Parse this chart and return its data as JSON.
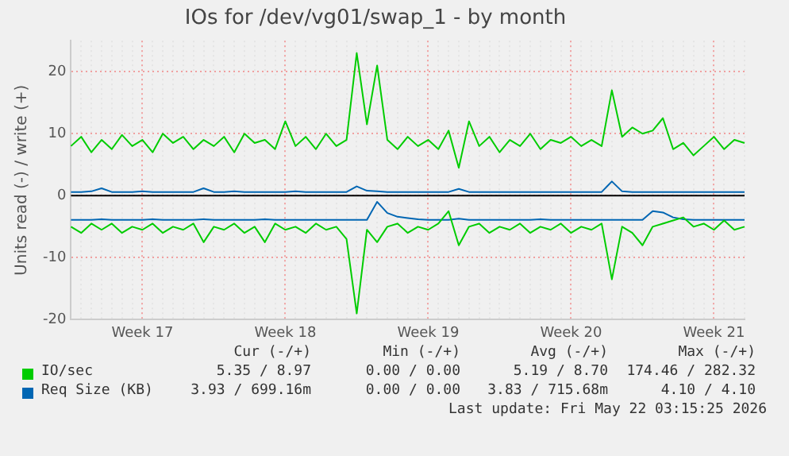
{
  "chart_data": {
    "type": "line",
    "title": "IOs for /dev/vg01/swap_1 - by month",
    "ylabel": "Units read (-) / write (+)",
    "categories": [
      null,
      null,
      null,
      null,
      null,
      null,
      null,
      "Week 17",
      null,
      null,
      null,
      null,
      null,
      null,
      null,
      null,
      null,
      null,
      null,
      null,
      null,
      "Week 18",
      null,
      null,
      null,
      null,
      null,
      null,
      null,
      null,
      null,
      null,
      null,
      null,
      null,
      "Week 19",
      null,
      null,
      null,
      null,
      null,
      null,
      null,
      null,
      null,
      null,
      null,
      null,
      null,
      "Week 20",
      null,
      null,
      null,
      null,
      null,
      null,
      null,
      null,
      null,
      null,
      null,
      null,
      null,
      "Week 21",
      null,
      null,
      null
    ],
    "series": [
      {
        "name": "IO/sec",
        "color": "#00cc00",
        "values": [
          8,
          9.5,
          7,
          9,
          7.5,
          9.8,
          8,
          9,
          7,
          10,
          8.5,
          9.5,
          7.5,
          9,
          8,
          9.5,
          7,
          10,
          8.5,
          9,
          7.5,
          12,
          8,
          9.5,
          7.5,
          10,
          8,
          9,
          23,
          11.5,
          21,
          9,
          7.5,
          9.5,
          8,
          9,
          7.5,
          10.5,
          4.5,
          12,
          8,
          9.5,
          7,
          9,
          8,
          10,
          7.5,
          9,
          8.5,
          9.5,
          8,
          9,
          8,
          17,
          9.5,
          11,
          10,
          10.5,
          12.5,
          7.5,
          8.5,
          6.5,
          8,
          9.5,
          7.5,
          9,
          8.5
        ]
      },
      {
        "color": "#00cc00",
        "values": [
          -5,
          -6,
          -4.5,
          -5.5,
          -4.5,
          -6,
          -5,
          -5.5,
          -4.5,
          -6,
          -5,
          -5.5,
          -4.5,
          -7.5,
          -5,
          -5.5,
          -4.5,
          -6,
          -5,
          -7.5,
          -4.5,
          -5.5,
          -5,
          -6,
          -4.5,
          -5.5,
          -5,
          -7,
          -19,
          -5.5,
          -7.5,
          -5,
          -4.5,
          -6,
          -5,
          -5.5,
          -4.5,
          -2.5,
          -8,
          -5,
          -4.5,
          -6,
          -5,
          -5.5,
          -4.5,
          -6,
          -5,
          -5.5,
          -4.5,
          -6,
          -5,
          -5.5,
          -4.5,
          -13.5,
          -5,
          -6,
          -8,
          -5,
          -4.5,
          -4,
          -3.5,
          -5,
          -4.5,
          -5.5,
          -4,
          -5.5,
          -5
        ]
      },
      {
        "name": "Req Size (KB)",
        "color": "#0066b3",
        "values": [
          0.6,
          0.6,
          0.7,
          1.2,
          0.6,
          0.6,
          0.6,
          0.7,
          0.6,
          0.6,
          0.6,
          0.6,
          0.6,
          1.2,
          0.6,
          0.6,
          0.7,
          0.6,
          0.6,
          0.6,
          0.6,
          0.6,
          0.7,
          0.6,
          0.6,
          0.6,
          0.6,
          0.6,
          1.5,
          0.8,
          0.7,
          0.6,
          0.6,
          0.6,
          0.6,
          0.6,
          0.6,
          0.6,
          1.1,
          0.6,
          0.6,
          0.6,
          0.6,
          0.6,
          0.6,
          0.6,
          0.6,
          0.6,
          0.6,
          0.6,
          0.6,
          0.6,
          0.6,
          2.3,
          0.7,
          0.6,
          0.6,
          0.6,
          0.6,
          0.6,
          0.6,
          0.6,
          0.6,
          0.6,
          0.6,
          0.6,
          0.6
        ]
      },
      {
        "color": "#0066b3",
        "values": [
          -3.9,
          -3.9,
          -3.9,
          -3.8,
          -3.9,
          -3.9,
          -3.9,
          -3.9,
          -3.8,
          -3.9,
          -3.9,
          -3.9,
          -3.9,
          -3.8,
          -3.9,
          -3.9,
          -3.9,
          -3.9,
          -3.9,
          -3.8,
          -3.9,
          -3.9,
          -3.9,
          -3.9,
          -3.9,
          -3.9,
          -3.9,
          -3.9,
          -3.9,
          -3.9,
          -1,
          -2.8,
          -3.4,
          -3.6,
          -3.8,
          -3.9,
          -3.9,
          -3.9,
          -3.7,
          -3.9,
          -3.9,
          -3.9,
          -3.9,
          -3.9,
          -3.9,
          -3.9,
          -3.8,
          -3.9,
          -3.9,
          -3.9,
          -3.9,
          -3.9,
          -3.9,
          -3.9,
          -3.9,
          -3.9,
          -3.9,
          -2.5,
          -2.7,
          -3.5,
          -3.8,
          -3.9,
          -3.9,
          -3.9,
          -3.9,
          -3.9,
          -3.9
        ]
      }
    ],
    "ylim": [
      -20,
      25
    ],
    "yticks": [
      -20,
      -10,
      0,
      10,
      20
    ],
    "ref_lines": [
      {
        "axis": "y",
        "value": 0,
        "color": "#000000"
      }
    ],
    "grid": true,
    "legend": "bottom",
    "marker": "none",
    "line_style": "solid",
    "annotations": [
      "Cur (-/+)",
      "Min (-/+)",
      "Avg (-/+)",
      "Max (-/+)",
      "5.35 / 8.97",
      "0.00 / 0.00",
      "5.19 / 8.70",
      "174.46 / 282.32",
      "3.93 / 699.16m",
      "0.00 / 0.00",
      "3.83 / 715.68m",
      "4.10 / 4.10",
      "Last update: Fri May 22 03:15:25 2026"
    ]
  }
}
